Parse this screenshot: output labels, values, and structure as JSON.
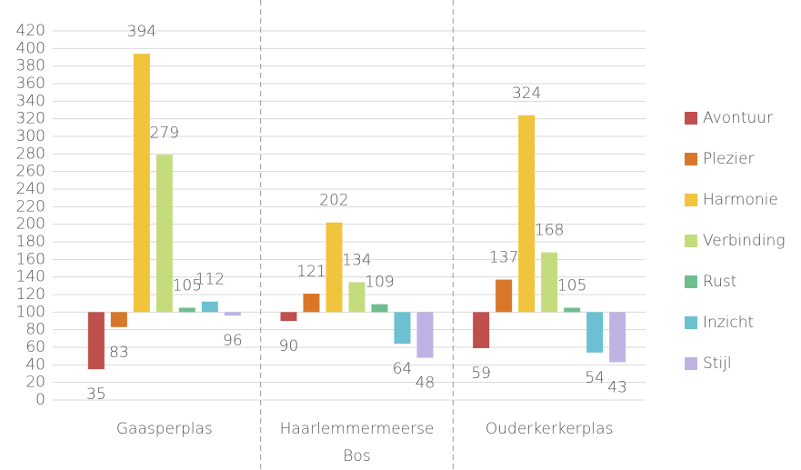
{
  "chart_data": {
    "type": "bar",
    "bar_origin": 100,
    "categories": [
      "Gaasperplas",
      "Haarlemmermeerse Bos",
      "Ouderkerkerplas"
    ],
    "series": [
      {
        "name": "Avontuur",
        "color": "#c0504d",
        "values": [
          35,
          90,
          59
        ]
      },
      {
        "name": "Plezier",
        "color": "#d8772a",
        "values": [
          83,
          121,
          137
        ]
      },
      {
        "name": "Harmonie",
        "color": "#f0c43c",
        "values": [
          394,
          202,
          324
        ]
      },
      {
        "name": "Verbinding",
        "color": "#c5dc7d",
        "values": [
          279,
          134,
          168
        ]
      },
      {
        "name": "Rust",
        "color": "#6dbf8e",
        "values": [
          105,
          109,
          105
        ]
      },
      {
        "name": "Inzicht",
        "color": "#6cc0d1",
        "values": [
          112,
          64,
          54
        ]
      },
      {
        "name": "Stijl",
        "color": "#bfb3e3",
        "values": [
          96,
          48,
          43
        ]
      }
    ],
    "ylim": [
      0,
      420
    ],
    "yticks": [
      0,
      20,
      40,
      60,
      80,
      100,
      120,
      140,
      160,
      180,
      200,
      220,
      240,
      260,
      280,
      300,
      320,
      340,
      360,
      380,
      400,
      420
    ],
    "grid": true,
    "legend": "right"
  }
}
